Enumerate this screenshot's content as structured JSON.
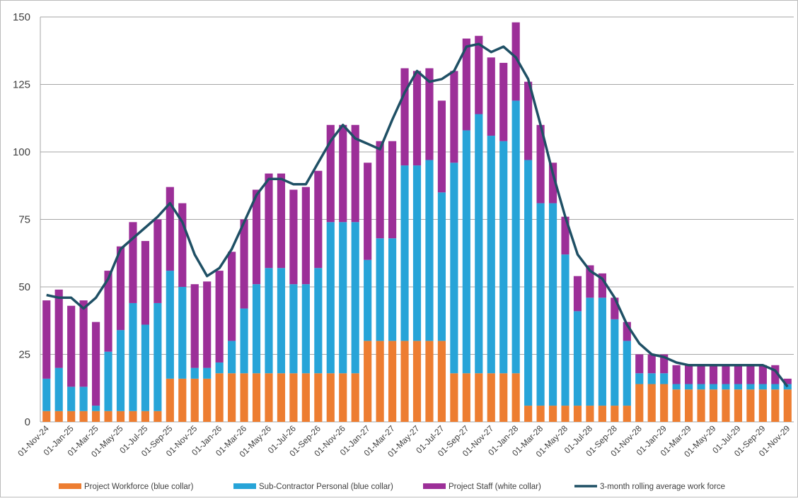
{
  "chart_data": {
    "type": "bar",
    "stacked": true,
    "grid": true,
    "legend": "bottom",
    "categories": [
      "01-Nov-24",
      null,
      "01-Jan-25",
      null,
      "01-Mar-25",
      null,
      "01-May-25",
      null,
      "01-Jul-25",
      null,
      "01-Sep-25",
      null,
      "01-Nov-25",
      null,
      "01-Jan-26",
      null,
      "01-Mar-26",
      null,
      "01-May-26",
      null,
      "01-Jul-26",
      null,
      "01-Sep-26",
      null,
      "01-Nov-26",
      null,
      "01-Jan-27",
      null,
      "01-Mar-27",
      null,
      "01-May-27",
      null,
      "01-Jul-27",
      null,
      "01-Sep-27",
      null,
      "01-Nov-27",
      null,
      "01-Jan-28",
      null,
      "01-Mar-28",
      null,
      "01-May-28",
      null,
      "01-Jul-28",
      null,
      "01-Sep-28",
      null,
      "01-Nov-28",
      null,
      "01-Jan-29",
      null,
      "01-Mar-29",
      null,
      "01-May-29",
      null,
      "01-Jul-29",
      null,
      "01-Sep-29",
      null,
      "01-Nov-29"
    ],
    "series": [
      {
        "name": "Project Workforce (blue collar)",
        "color": "#ed7d31",
        "values": [
          4,
          4,
          4,
          4,
          4,
          4,
          4,
          4,
          4,
          4,
          16,
          16,
          16,
          16,
          18,
          18,
          18,
          18,
          18,
          18,
          18,
          18,
          18,
          18,
          18,
          18,
          30,
          30,
          30,
          30,
          30,
          30,
          30,
          18,
          18,
          18,
          18,
          18,
          18,
          6,
          6,
          6,
          6,
          6,
          6,
          6,
          6,
          6,
          14,
          14,
          14,
          12,
          12,
          12,
          12,
          12,
          12,
          12,
          12,
          12,
          12
        ]
      },
      {
        "name": "Sub-Contractor Personal (blue collar)",
        "color": "#27a4d8",
        "values": [
          12,
          16,
          9,
          9,
          2,
          22,
          30,
          40,
          32,
          40,
          40,
          34,
          4,
          4,
          4,
          12,
          24,
          33,
          39,
          39,
          33,
          33,
          39,
          56,
          56,
          56,
          30,
          38,
          38,
          65,
          65,
          67,
          55,
          78,
          90,
          96,
          88,
          86,
          101,
          91,
          75,
          75,
          56,
          35,
          40,
          40,
          32,
          24,
          4,
          4,
          4,
          2,
          2,
          2,
          2,
          2,
          2,
          2,
          2,
          2,
          2
        ]
      },
      {
        "name": "Project Staff (white collar)",
        "color": "#9c2f98",
        "values": [
          29,
          29,
          30,
          32,
          31,
          30,
          31,
          30,
          31,
          31,
          31,
          31,
          31,
          32,
          34,
          33,
          33,
          35,
          35,
          35,
          35,
          36,
          36,
          36,
          36,
          36,
          36,
          36,
          36,
          36,
          35,
          34,
          34,
          34,
          34,
          29,
          29,
          29,
          29,
          29,
          29,
          15,
          14,
          13,
          12,
          9,
          8,
          7,
          7,
          7,
          7,
          7,
          7,
          7,
          7,
          7,
          7,
          7,
          7,
          7,
          2
        ]
      },
      {
        "name": "3-month rolling average work force",
        "color": "#1f5065",
        "type": "line",
        "values": [
          47,
          46,
          46,
          42,
          46,
          53,
          64,
          68,
          72,
          76,
          81,
          74,
          62,
          54,
          57,
          64,
          74,
          84,
          90,
          90,
          88,
          88,
          96,
          104,
          110,
          105,
          103,
          101,
          112,
          122,
          130,
          126,
          127,
          130,
          139,
          140,
          137,
          139,
          135,
          127,
          110,
          92,
          76,
          62,
          56,
          53,
          46,
          36,
          29,
          25,
          24,
          22,
          21,
          21,
          21,
          21,
          21,
          21,
          21,
          19,
          13
        ]
      }
    ],
    "ylim": [
      0,
      150
    ],
    "yticks": [
      0,
      25,
      50,
      75,
      100,
      125,
      150
    ]
  }
}
